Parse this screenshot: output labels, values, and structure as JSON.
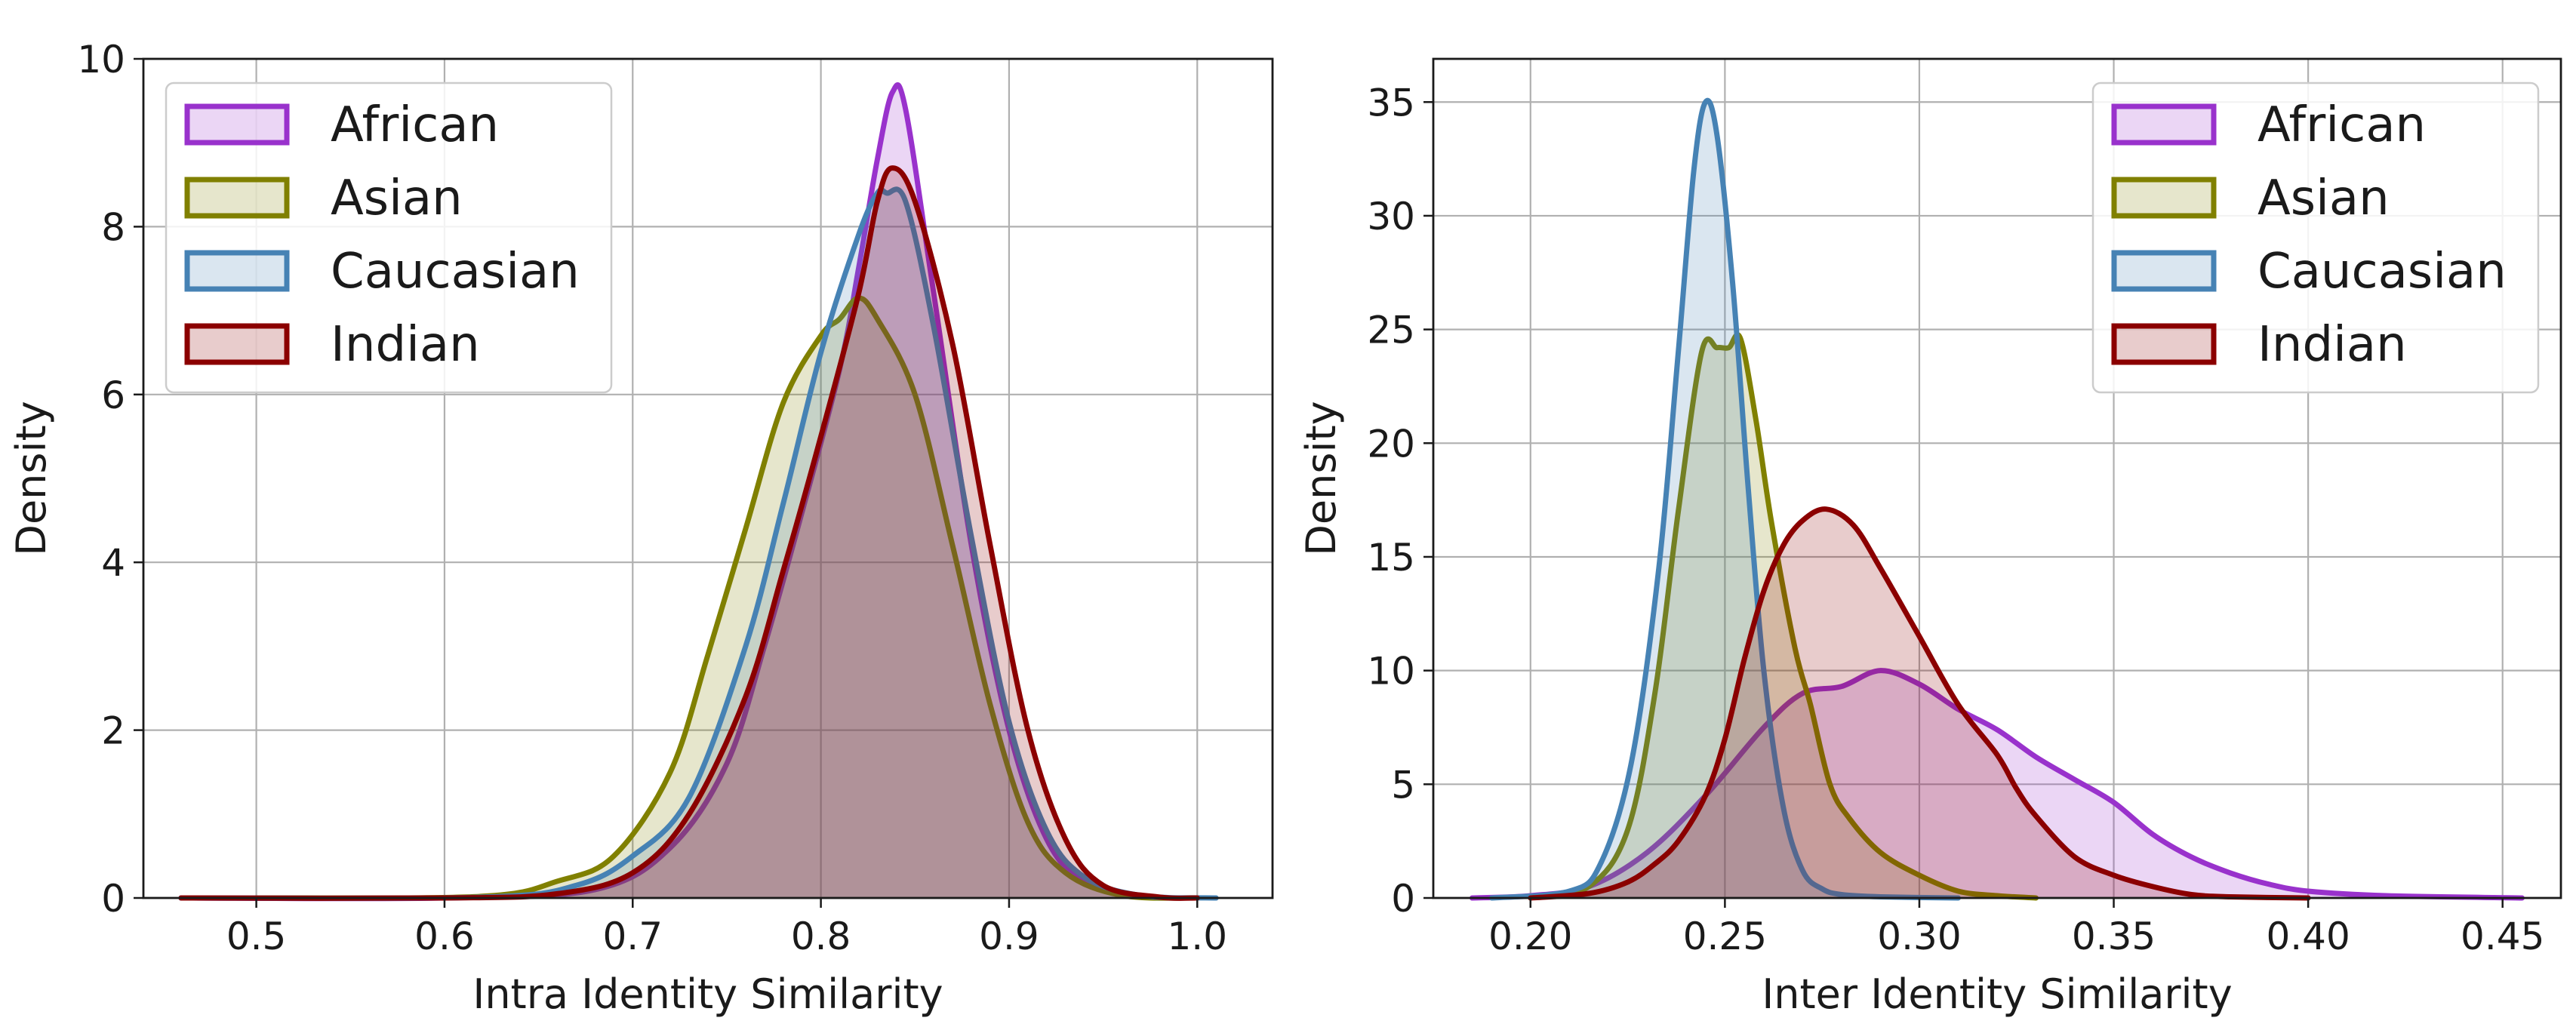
{
  "chart_data": [
    {
      "type": "area",
      "xlabel": "Intra Identity Similarity",
      "ylabel": "Density",
      "xlim": [
        0.44,
        1.04
      ],
      "ylim": [
        0,
        10
      ],
      "xticks": [
        0.5,
        0.6,
        0.7,
        0.8,
        0.9,
        1.0
      ],
      "xtick_labels": [
        "0.5",
        "0.6",
        "0.7",
        "0.8",
        "0.9",
        "1.0"
      ],
      "yticks": [
        0,
        2,
        4,
        6,
        8,
        10
      ],
      "ytick_labels": [
        "0",
        "2",
        "4",
        "6",
        "8",
        "10"
      ],
      "grid": true,
      "legend_position": "upper-left",
      "series": [
        {
          "name": "African",
          "color": "#9932CC",
          "x": [
            0.46,
            0.6,
            0.68,
            0.72,
            0.75,
            0.77,
            0.79,
            0.81,
            0.82,
            0.83,
            0.838,
            0.845,
            0.86,
            0.88,
            0.9,
            0.92,
            0.94,
            0.97,
            1.0
          ],
          "y": [
            0,
            0,
            0.1,
            0.6,
            1.6,
            3.0,
            4.6,
            6.3,
            7.5,
            8.8,
            9.6,
            9.4,
            7.2,
            4.2,
            2.0,
            0.7,
            0.2,
            0.02,
            0
          ]
        },
        {
          "name": "Asian",
          "color": "#808000",
          "x": [
            0.5,
            0.62,
            0.66,
            0.69,
            0.72,
            0.74,
            0.76,
            0.78,
            0.8,
            0.81,
            0.82,
            0.83,
            0.85,
            0.87,
            0.89,
            0.91,
            0.93,
            0.96,
            1.0
          ],
          "y": [
            0,
            0.02,
            0.2,
            0.5,
            1.5,
            2.9,
            4.4,
            5.9,
            6.7,
            6.9,
            7.15,
            6.9,
            6.0,
            4.2,
            2.3,
            0.9,
            0.3,
            0.03,
            0
          ]
        },
        {
          "name": "Caucasian",
          "color": "#4682B4",
          "x": [
            0.46,
            0.62,
            0.67,
            0.7,
            0.73,
            0.76,
            0.78,
            0.8,
            0.82,
            0.83,
            0.835,
            0.845,
            0.86,
            0.88,
            0.9,
            0.92,
            0.94,
            0.97,
            1.01
          ],
          "y": [
            0,
            0.01,
            0.15,
            0.5,
            1.2,
            3.0,
            4.7,
            6.5,
            7.9,
            8.4,
            8.4,
            8.3,
            6.8,
            4.3,
            2.1,
            0.8,
            0.25,
            0.03,
            0
          ]
        },
        {
          "name": "Indian",
          "color": "#8B0000",
          "x": [
            0.46,
            0.6,
            0.66,
            0.7,
            0.73,
            0.76,
            0.78,
            0.8,
            0.82,
            0.83,
            0.838,
            0.85,
            0.87,
            0.89,
            0.91,
            0.93,
            0.95,
            0.98,
            1.0
          ],
          "y": [
            0,
            0,
            0.05,
            0.3,
            1.0,
            2.4,
            3.9,
            5.5,
            7.2,
            8.3,
            8.7,
            8.3,
            6.6,
            4.2,
            2.0,
            0.7,
            0.15,
            0.01,
            0
          ]
        }
      ]
    },
    {
      "type": "area",
      "xlabel": "Inter Identity Similarity",
      "ylabel": "Density",
      "xlim": [
        0.175,
        0.465
      ],
      "ylim": [
        0,
        36.9
      ],
      "xticks": [
        0.2,
        0.25,
        0.3,
        0.35,
        0.4,
        0.45
      ],
      "xtick_labels": [
        "0.20",
        "0.25",
        "0.30",
        "0.35",
        "0.40",
        "0.45"
      ],
      "yticks": [
        0,
        5,
        10,
        15,
        20,
        25,
        30,
        35
      ],
      "ytick_labels": [
        "0",
        "5",
        "10",
        "15",
        "20",
        "25",
        "30",
        "35"
      ],
      "grid": true,
      "legend_position": "upper-right",
      "series": [
        {
          "name": "African",
          "color": "#9932CC",
          "x": [
            0.185,
            0.2,
            0.215,
            0.23,
            0.245,
            0.26,
            0.27,
            0.28,
            0.29,
            0.3,
            0.31,
            0.32,
            0.33,
            0.34,
            0.35,
            0.36,
            0.37,
            0.38,
            0.39,
            0.4,
            0.42,
            0.455
          ],
          "y": [
            0,
            0.1,
            0.5,
            2.0,
            4.5,
            7.5,
            9.0,
            9.3,
            10.0,
            9.4,
            8.3,
            7.4,
            6.2,
            5.2,
            4.2,
            2.8,
            1.8,
            1.1,
            0.6,
            0.3,
            0.1,
            0
          ]
        },
        {
          "name": "Asian",
          "color": "#808000",
          "x": [
            0.2,
            0.215,
            0.225,
            0.232,
            0.238,
            0.244,
            0.248,
            0.251,
            0.254,
            0.258,
            0.262,
            0.268,
            0.272,
            0.277,
            0.282,
            0.29,
            0.3,
            0.31,
            0.32,
            0.33
          ],
          "y": [
            0,
            0.5,
            3.0,
            9.0,
            17.0,
            24.0,
            24.2,
            24.2,
            24.6,
            21.0,
            16.5,
            11.0,
            8.5,
            5.0,
            3.5,
            2.0,
            1.0,
            0.3,
            0.1,
            0
          ]
        },
        {
          "name": "Caucasian",
          "color": "#4682B4",
          "x": [
            0.19,
            0.21,
            0.218,
            0.226,
            0.233,
            0.238,
            0.242,
            0.245,
            0.248,
            0.252,
            0.256,
            0.26,
            0.265,
            0.27,
            0.275,
            0.28,
            0.29,
            0.31
          ],
          "y": [
            0,
            0.3,
            1.5,
            6.0,
            14.5,
            24.0,
            32.0,
            35.0,
            33.5,
            27.0,
            18.0,
            10.0,
            4.0,
            1.2,
            0.4,
            0.15,
            0.05,
            0
          ]
        },
        {
          "name": "Indian",
          "color": "#8B0000",
          "x": [
            0.2,
            0.215,
            0.225,
            0.232,
            0.238,
            0.245,
            0.25,
            0.255,
            0.26,
            0.265,
            0.27,
            0.276,
            0.283,
            0.29,
            0.3,
            0.31,
            0.32,
            0.325,
            0.33,
            0.34,
            0.35,
            0.36,
            0.37,
            0.38,
            0.4
          ],
          "y": [
            0,
            0.2,
            0.7,
            1.5,
            2.5,
            4.5,
            7.0,
            10.5,
            13.5,
            15.5,
            16.6,
            17.1,
            16.4,
            14.5,
            11.5,
            8.5,
            6.3,
            4.8,
            3.6,
            1.8,
            1.0,
            0.5,
            0.15,
            0.05,
            0
          ]
        }
      ]
    }
  ]
}
